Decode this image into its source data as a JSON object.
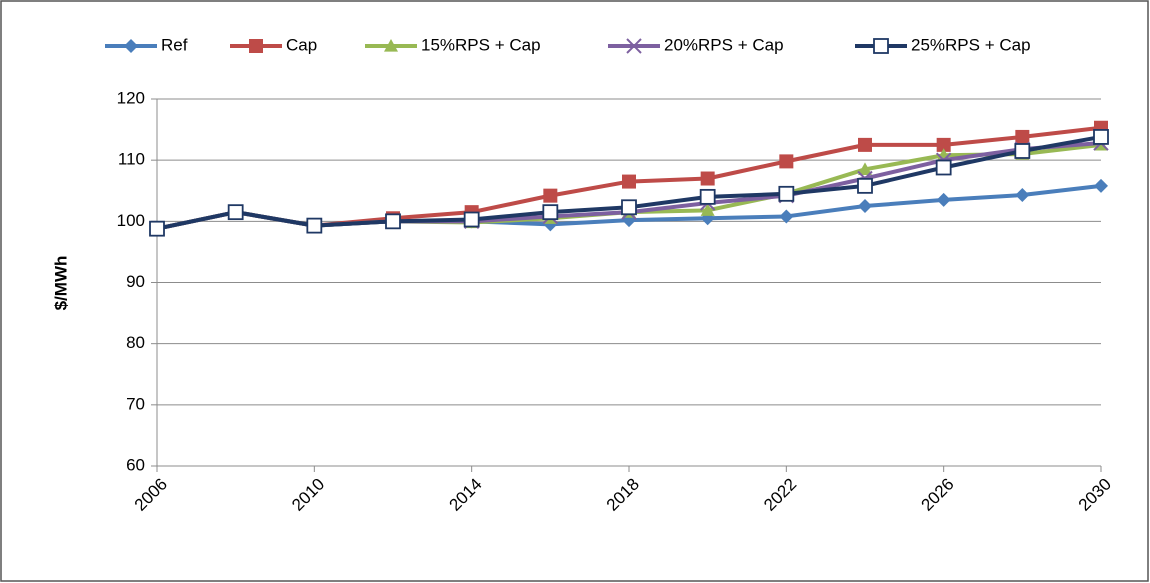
{
  "chart_data": {
    "type": "line",
    "y_label": "$/MWh",
    "x": [
      2006,
      2008,
      2010,
      2012,
      2014,
      2016,
      2018,
      2020,
      2022,
      2024,
      2026,
      2028,
      2030
    ],
    "xlim": [
      2006,
      2030
    ],
    "xticks": [
      2006,
      2010,
      2014,
      2018,
      2022,
      2026,
      2030
    ],
    "ylim": [
      60,
      120
    ],
    "yticks": [
      60,
      70,
      80,
      90,
      100,
      110,
      120
    ],
    "grid": true,
    "legend": "top",
    "series": [
      {
        "name": "Ref",
        "color": "#4a7ebb",
        "marker": "diamond",
        "values": [
          98.8,
          101.5,
          99.3,
          100,
          100,
          99.5,
          100.2,
          100.5,
          100.8,
          102.5,
          103.5,
          104.3,
          105.8
        ]
      },
      {
        "name": "Cap",
        "color": "#be4b48",
        "marker": "square",
        "values": [
          98.8,
          101.5,
          99.3,
          100.5,
          101.5,
          104.2,
          106.5,
          107,
          109.8,
          112.5,
          112.5,
          113.8,
          115.3
        ]
      },
      {
        "name": "15%RPS + Cap",
        "color": "#98b954",
        "marker": "triangle",
        "values": [
          98.8,
          101.5,
          99.3,
          100,
          99.8,
          100.5,
          101.5,
          101.8,
          104.5,
          108.5,
          110.8,
          111,
          112.5
        ]
      },
      {
        "name": "20%RPS + Cap",
        "color": "#7d60a0",
        "marker": "cross",
        "values": [
          98.8,
          101.5,
          99.3,
          100,
          100,
          100.8,
          101.5,
          103,
          104.2,
          107,
          110,
          111.8,
          112.8
        ]
      },
      {
        "name": "25%RPS + Cap",
        "color": "#1f3864",
        "marker": "hollow-square",
        "values": [
          98.8,
          101.5,
          99.3,
          100,
          100.3,
          101.5,
          102.3,
          104,
          104.5,
          105.8,
          108.8,
          111.5,
          113.8
        ]
      }
    ]
  }
}
